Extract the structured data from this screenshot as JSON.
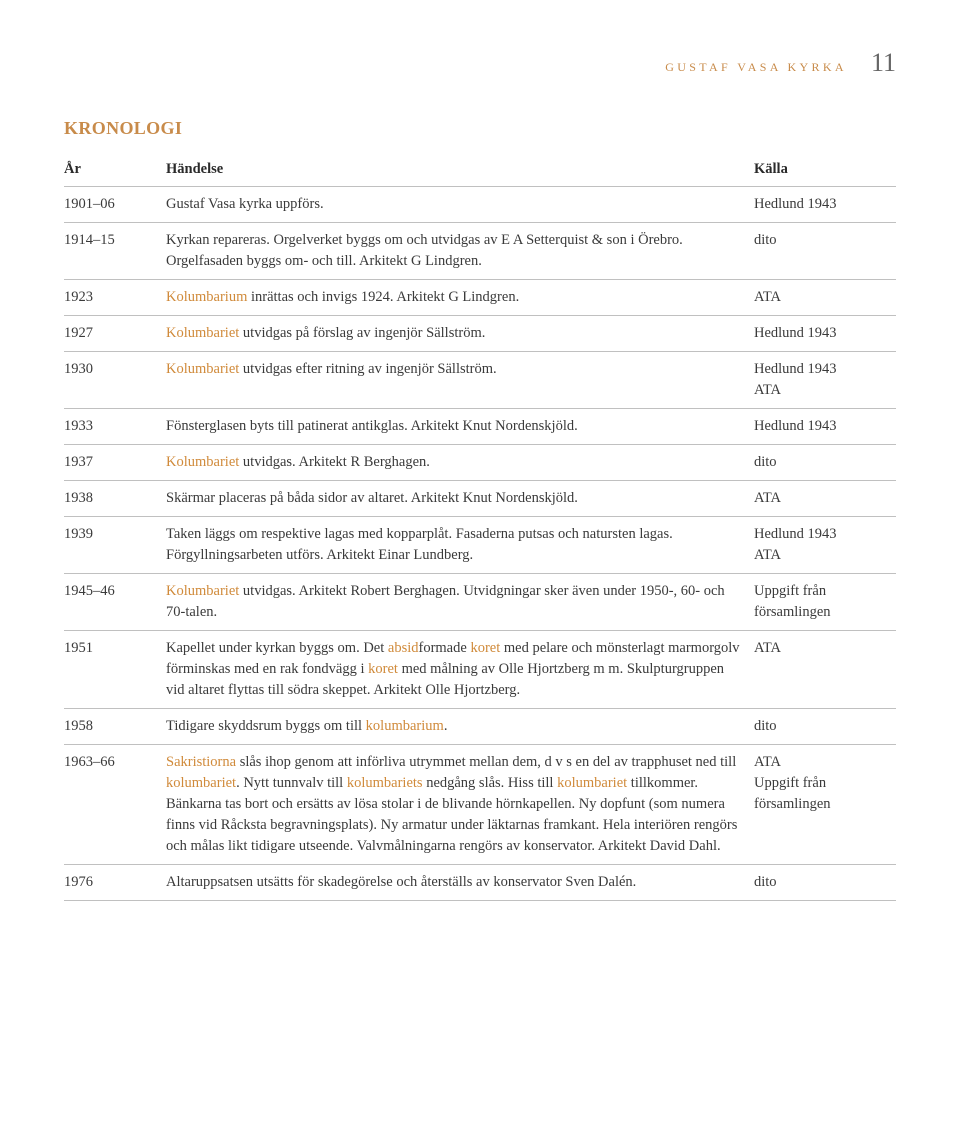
{
  "header": {
    "running_title": "gustaf vasa kyrka",
    "page_number": "11"
  },
  "section_title": "KRONOLOGI",
  "columns": {
    "year": "År",
    "event": "Händelse",
    "source": "Källa"
  },
  "highlight_color": "#d08a3a",
  "rows": [
    {
      "year": "1901–06",
      "event": [
        {
          "t": "Gustaf Vasa kyrka uppförs."
        }
      ],
      "source": "Hedlund 1943"
    },
    {
      "year": "1914–15",
      "event": [
        {
          "t": "Kyrkan repareras. Orgelverket byggs om och utvidgas av E A Setterquist & son i Örebro. Orgelfasaden byggs om- och till. Arkitekt G Lindgren."
        }
      ],
      "source": "dito"
    },
    {
      "year": "1923",
      "event": [
        {
          "t": "Kolumbarium",
          "hl": true
        },
        {
          "t": " inrättas och invigs 1924. Arkitekt G Lindgren."
        }
      ],
      "source": "ATA"
    },
    {
      "year": "1927",
      "event": [
        {
          "t": "Kolumbariet",
          "hl": true
        },
        {
          "t": " utvidgas på förslag av ingenjör Sällström."
        }
      ],
      "source": "Hedlund 1943"
    },
    {
      "year": "1930",
      "event": [
        {
          "t": "Kolumbariet",
          "hl": true
        },
        {
          "t": " utvidgas efter ritning av ingenjör Sällström."
        }
      ],
      "source": "Hedlund 1943\nATA"
    },
    {
      "year": "1933",
      "event": [
        {
          "t": "Fönsterglasen byts till patinerat antikglas. Arkitekt Knut Nordenskjöld."
        }
      ],
      "source": "Hedlund 1943"
    },
    {
      "year": "1937",
      "event": [
        {
          "t": "Kolumbariet",
          "hl": true
        },
        {
          "t": " utvidgas. Arkitekt R Berghagen."
        }
      ],
      "source": "dito"
    },
    {
      "year": "1938",
      "event": [
        {
          "t": "Skärmar placeras på båda sidor av altaret. Arkitekt Knut Nordenskjöld."
        }
      ],
      "source": "ATA"
    },
    {
      "year": "1939",
      "event": [
        {
          "t": "Taken läggs om respektive lagas med kopparplåt. Fasaderna putsas och natursten lagas. Förgyllningsarbeten utförs. Arkitekt Einar Lundberg."
        }
      ],
      "source": "Hedlund 1943\nATA"
    },
    {
      "year": "1945–46",
      "event": [
        {
          "t": "Kolumbariet",
          "hl": true
        },
        {
          "t": " utvidgas. Arkitekt Robert Berghagen. Utvidgningar sker även under 1950-, 60- och 70-talen."
        }
      ],
      "source": "Uppgift från församlingen"
    },
    {
      "year": "1951",
      "event": [
        {
          "t": "Kapellet under kyrkan byggs om. Det "
        },
        {
          "t": "absid",
          "hl": true
        },
        {
          "t": "formade "
        },
        {
          "t": "koret",
          "hl": true
        },
        {
          "t": " med pelare och mönsterlagt marmorgolv förminskas med en rak fondvägg i "
        },
        {
          "t": "koret",
          "hl": true
        },
        {
          "t": " med målning av Olle Hjortzberg m m. Skulpturgruppen vid altaret flyttas till södra skeppet. Arkitekt Olle Hjortzberg."
        }
      ],
      "source": "ATA"
    },
    {
      "year": "1958",
      "event": [
        {
          "t": "Tidigare skyddsrum byggs om till "
        },
        {
          "t": "kolumbarium",
          "hl": true
        },
        {
          "t": "."
        }
      ],
      "source": "dito"
    },
    {
      "year": "1963–66",
      "event": [
        {
          "t": "Sakristiorna",
          "hl": true
        },
        {
          "t": " slås ihop genom att införliva utrymmet mellan dem, d v s en del av trapphuset ned till "
        },
        {
          "t": "kolumbariet",
          "hl": true
        },
        {
          "t": ". Nytt tunnvalv till "
        },
        {
          "t": "kolumbariets",
          "hl": true
        },
        {
          "t": " nedgång slås. Hiss till "
        },
        {
          "t": "kolumbariet",
          "hl": true
        },
        {
          "t": " tillkommer. Bänkarna tas bort och ersätts av lösa stolar i de blivande hörnkapellen. Ny dopfunt (som numera finns vid Råcksta begravningsplats). Ny armatur under läktarnas framkant. Hela interiören rengörs och målas likt tidigare utseende. Valvmålningarna rengörs av konservator. Arkitekt David Dahl."
        }
      ],
      "source": "ATA\nUppgift från församlingen"
    },
    {
      "year": "1976",
      "event": [
        {
          "t": "Altaruppsatsen utsätts för skadegörelse och återställs av konservator Sven Dalén."
        }
      ],
      "source": "dito"
    }
  ]
}
